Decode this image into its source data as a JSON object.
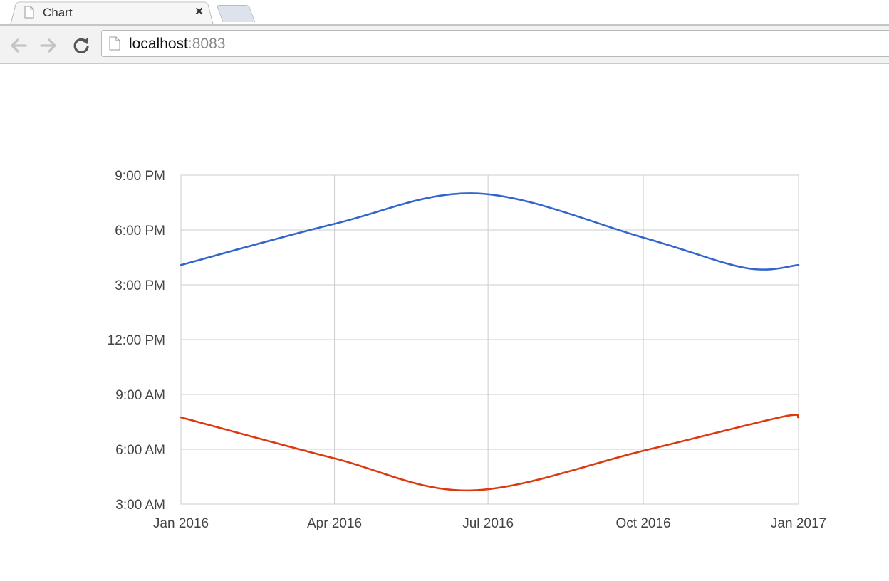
{
  "browser": {
    "tab_title": "Chart",
    "close_glyph": "×",
    "url_host": "localhost",
    "url_port": ":8083",
    "icons": [
      "page-icon",
      "back-arrow-icon",
      "forward-arrow-icon",
      "reload-icon",
      "close-icon"
    ]
  },
  "chart_data": {
    "type": "line",
    "title": "",
    "xlabel": "",
    "ylabel": "",
    "x_ticks": [
      "Jan 2016",
      "Apr 2016",
      "Jul 2016",
      "Oct 2016",
      "Jan 2017"
    ],
    "y_ticks": [
      "9:00 PM",
      "6:00 PM",
      "3:00 PM",
      "12:00 PM",
      "9:00 AM",
      "6:00 AM",
      "3:00 AM"
    ],
    "xlim": [
      "2016-01-01",
      "2017-01-01"
    ],
    "ylim": [
      "03:00",
      "21:00"
    ],
    "grid": true,
    "legend": "none",
    "series": [
      {
        "color": "#3366cc",
        "points": [
          {
            "x": "2016-01-01",
            "y": "16:05"
          },
          {
            "x": "2016-04-01",
            "y": "18:20"
          },
          {
            "x": "2016-06-25",
            "y": "20:00"
          },
          {
            "x": "2016-10-01",
            "y": "17:35"
          },
          {
            "x": "2016-12-01",
            "y": "15:55"
          },
          {
            "x": "2017-01-01",
            "y": "16:05"
          }
        ]
      },
      {
        "color": "#dc3912",
        "points": [
          {
            "x": "2016-01-01",
            "y": "07:45"
          },
          {
            "x": "2016-04-01",
            "y": "05:30"
          },
          {
            "x": "2016-06-21",
            "y": "03:45"
          },
          {
            "x": "2016-10-01",
            "y": "05:55"
          },
          {
            "x": "2016-12-21",
            "y": "07:45"
          },
          {
            "x": "2017-01-01",
            "y": "07:45"
          }
        ]
      }
    ]
  }
}
